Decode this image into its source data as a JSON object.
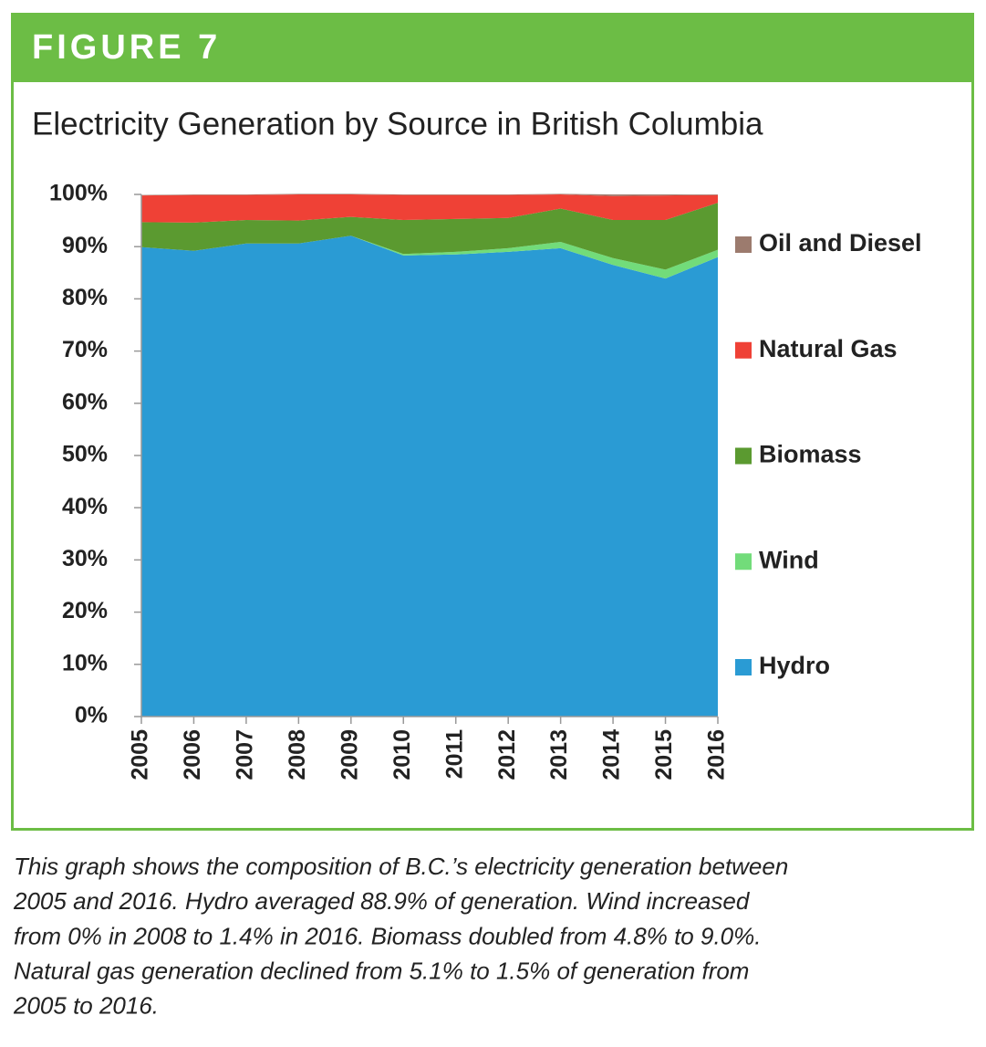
{
  "figure_label": "FIGURE 7",
  "caption": [
    "This graph shows the composition of B.C.’s electricity generation between",
    "2005 and 2016. Hydro averaged 88.9% of generation. Wind increased",
    "from 0% in 2008 to 1.4% in 2016. Biomass doubled from 4.8% to 9.0%.",
    "Natural gas generation declined from 5.1% to 1.5% of generation from",
    "2005 to 2016."
  ],
  "chart_data": {
    "type": "stacked-area",
    "title": "Electricity Generation by Source in British Columbia",
    "categories": [
      "2005",
      "2006",
      "2007",
      "2008",
      "2009",
      "2010",
      "2011",
      "2012",
      "2013",
      "2014",
      "2015",
      "2016"
    ],
    "series": [
      {
        "name": "Hydro",
        "color": "#2a9bd4",
        "values": [
          89.9,
          89.2,
          90.6,
          90.6,
          92.1,
          88.3,
          88.5,
          89.0,
          89.7,
          86.5,
          83.9,
          88.0
        ]
      },
      {
        "name": "Wind",
        "color": "#72dc7a",
        "values": [
          0,
          0,
          0,
          0,
          0,
          0.3,
          0.5,
          0.7,
          1.2,
          1.3,
          1.7,
          1.4
        ]
      },
      {
        "name": "Biomass",
        "color": "#5b9a30",
        "values": [
          4.8,
          5.4,
          4.5,
          4.4,
          3.6,
          6.5,
          6.3,
          5.8,
          6.4,
          7.3,
          9.5,
          9.0
        ]
      },
      {
        "name": "Natural Gas",
        "color": "#ef4136",
        "values": [
          5.1,
          5.3,
          4.8,
          5.0,
          4.3,
          4.8,
          4.6,
          4.4,
          2.7,
          4.6,
          4.7,
          1.5
        ]
      },
      {
        "name": "Oil and Diesel",
        "color": "#9c7b6e",
        "values": [
          0.1,
          0.1,
          0.1,
          0.1,
          0.1,
          0.1,
          0.1,
          0.1,
          0.1,
          0.3,
          0.2,
          0.1
        ]
      }
    ],
    "ylim": [
      0,
      100
    ],
    "yticks": [
      {
        "value": 0,
        "label": "0%"
      },
      {
        "value": 10,
        "label": "10%"
      },
      {
        "value": 20,
        "label": "20%"
      },
      {
        "value": 30,
        "label": "30%"
      },
      {
        "value": 40,
        "label": "40%"
      },
      {
        "value": 50,
        "label": "50%"
      },
      {
        "value": 60,
        "label": "60%"
      },
      {
        "value": 70,
        "label": "70%"
      },
      {
        "value": 80,
        "label": "80%"
      },
      {
        "value": 90,
        "label": "90%"
      },
      {
        "value": 100,
        "label": "100%"
      }
    ],
    "legend": "right"
  }
}
